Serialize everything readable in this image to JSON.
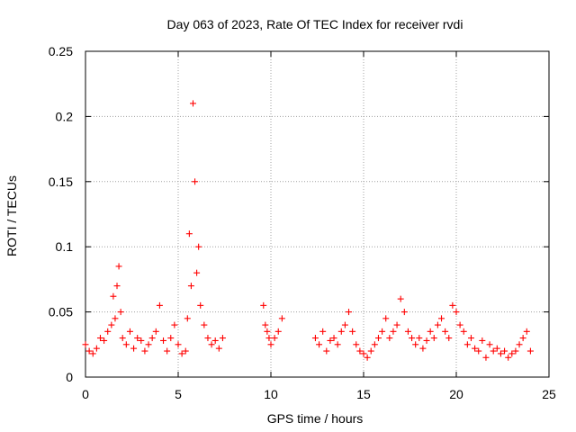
{
  "chart_data": {
    "type": "scatter",
    "title": "Day 063 of 2023, Rate Of TEC Index for receiver rvdi",
    "xlabel": "GPS time / hours",
    "ylabel": "ROTI / TECUs",
    "xlim": [
      0,
      25
    ],
    "ylim": [
      0,
      0.25
    ],
    "x_ticks": [
      0,
      5,
      10,
      15,
      20,
      25
    ],
    "y_ticks": [
      0,
      0.05,
      0.1,
      0.15,
      0.2,
      0.25
    ],
    "x_tick_labels": [
      "0",
      "5",
      "10",
      "15",
      "20",
      "25"
    ],
    "y_tick_labels": [
      "0",
      "0.05",
      "0.1",
      "0.15",
      "0.2",
      "0.25"
    ],
    "grid": true,
    "marker": "+",
    "color": "#ff0000",
    "series": [
      {
        "x": [
          0.0,
          0.2,
          0.4,
          0.6,
          0.8,
          1.0,
          1.2,
          1.4,
          1.5,
          1.6,
          1.7,
          1.8,
          1.9,
          2.0,
          2.2,
          2.4,
          2.6,
          2.8,
          3.0,
          3.2,
          3.4,
          3.6,
          3.8,
          4.0,
          4.2,
          4.4,
          4.6,
          4.8,
          5.0,
          5.2,
          5.4,
          5.5,
          5.6,
          5.7,
          5.8,
          5.9,
          6.0,
          6.1,
          6.2,
          6.4,
          6.6,
          6.8,
          7.0,
          7.2,
          7.4,
          9.6,
          9.7,
          9.8,
          9.9,
          10.0,
          10.2,
          10.4,
          10.6,
          12.4,
          12.6,
          12.8,
          13.0,
          13.2,
          13.4,
          13.6,
          13.8,
          14.0,
          14.2,
          14.4,
          14.6,
          14.8,
          15.0,
          15.2,
          15.4,
          15.6,
          15.8,
          16.0,
          16.2,
          16.4,
          16.6,
          16.8,
          17.0,
          17.2,
          17.4,
          17.6,
          17.8,
          18.0,
          18.2,
          18.4,
          18.6,
          18.8,
          19.0,
          19.2,
          19.4,
          19.6,
          19.8,
          20.0,
          20.2,
          20.4,
          20.6,
          20.8,
          21.0,
          21.2,
          21.4,
          21.6,
          21.8,
          22.0,
          22.2,
          22.4,
          22.6,
          22.8,
          23.0,
          23.2,
          23.4,
          23.6,
          23.8,
          24.0
        ],
        "y": [
          0.025,
          0.02,
          0.018,
          0.022,
          0.03,
          0.028,
          0.035,
          0.04,
          0.062,
          0.045,
          0.07,
          0.085,
          0.05,
          0.03,
          0.025,
          0.035,
          0.022,
          0.03,
          0.028,
          0.02,
          0.025,
          0.03,
          0.035,
          0.055,
          0.028,
          0.02,
          0.03,
          0.04,
          0.025,
          0.018,
          0.02,
          0.045,
          0.11,
          0.07,
          0.21,
          0.15,
          0.08,
          0.1,
          0.055,
          0.04,
          0.03,
          0.025,
          0.028,
          0.022,
          0.03,
          0.055,
          0.04,
          0.035,
          0.03,
          0.025,
          0.03,
          0.035,
          0.045,
          0.03,
          0.025,
          0.035,
          0.02,
          0.028,
          0.03,
          0.025,
          0.035,
          0.04,
          0.05,
          0.035,
          0.025,
          0.02,
          0.018,
          0.015,
          0.02,
          0.025,
          0.03,
          0.035,
          0.045,
          0.03,
          0.035,
          0.04,
          0.06,
          0.05,
          0.035,
          0.03,
          0.025,
          0.03,
          0.022,
          0.028,
          0.035,
          0.03,
          0.04,
          0.045,
          0.035,
          0.03,
          0.055,
          0.05,
          0.04,
          0.035,
          0.025,
          0.03,
          0.022,
          0.02,
          0.028,
          0.015,
          0.025,
          0.02,
          0.022,
          0.018,
          0.02,
          0.015,
          0.018,
          0.02,
          0.025,
          0.03,
          0.035,
          0.02
        ]
      }
    ]
  }
}
